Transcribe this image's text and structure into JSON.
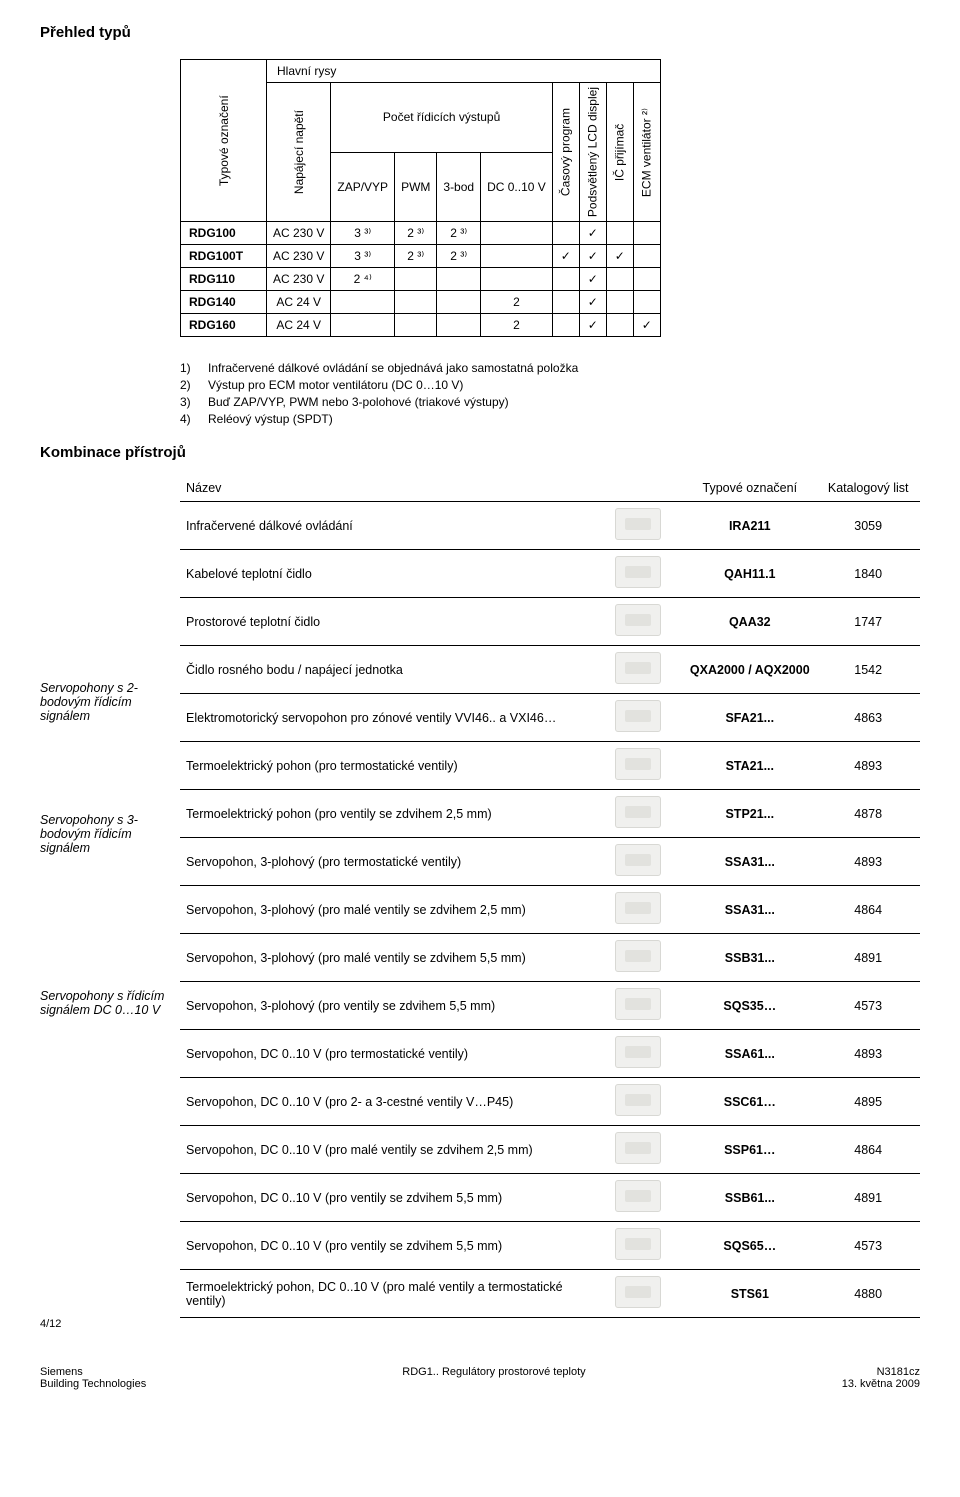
{
  "section_titles": {
    "overview": "Přehled typů",
    "combination": "Kombinace přístrojů"
  },
  "typetable": {
    "headers": {
      "type_col": "Typové označení",
      "main_features": "Hlavní rysy",
      "supply": "Napájecí napětí",
      "outputs_group": "Počet řídicích výstupů",
      "zapvyp": "ZAP/VYP",
      "pwm": "PWM",
      "tribod": "3-bod",
      "dc": "DC 0..10 V",
      "time_prog": "Časový program",
      "lcd": "Podsvětlený LCD displej",
      "ir": "IČ přijímač",
      "ecm": "ECM ventilátor ²⁾"
    },
    "rows": [
      {
        "name": "RDG100",
        "supply": "AC 230 V",
        "zapvyp": "3 ³⁾",
        "pwm": "2 ³⁾",
        "tribod": "2 ³⁾",
        "dc": "",
        "time": "",
        "lcd": "✓",
        "ir": "",
        "ecm": ""
      },
      {
        "name": "RDG100T",
        "supply": "AC 230 V",
        "zapvyp": "3 ³⁾",
        "pwm": "2 ³⁾",
        "tribod": "2 ³⁾",
        "dc": "",
        "time": "✓",
        "lcd": "✓",
        "ir": "✓",
        "ecm": ""
      },
      {
        "name": "RDG110",
        "supply": "AC 230 V",
        "zapvyp": "2 ⁴⁾",
        "pwm": "",
        "tribod": "",
        "dc": "",
        "time": "",
        "lcd": "✓",
        "ir": "",
        "ecm": ""
      },
      {
        "name": "RDG140",
        "supply": "AC 24 V",
        "zapvyp": "",
        "pwm": "",
        "tribod": "",
        "dc": "2",
        "time": "",
        "lcd": "✓",
        "ir": "",
        "ecm": ""
      },
      {
        "name": "RDG160",
        "supply": "AC 24 V",
        "zapvyp": "",
        "pwm": "",
        "tribod": "",
        "dc": "2",
        "time": "",
        "lcd": "✓",
        "ir": "",
        "ecm": "✓"
      }
    ],
    "notes": [
      {
        "n": "1)",
        "t": "Infračervené dálkové ovládání se objednává jako samostatná položka"
      },
      {
        "n": "2)",
        "t": "Výstup pro ECM motor ventilátoru (DC 0…10 V)"
      },
      {
        "n": "3)",
        "t": "Buď ZAP/VYP, PWM nebo 3-polohové (triakové výstupy)"
      },
      {
        "n": "4)",
        "t": "Reléový výstup (SPDT)"
      }
    ]
  },
  "combi": {
    "headers": {
      "name": "Název",
      "type": "Typové označení",
      "list": "Katalogový list"
    },
    "sidebars": {
      "s2": "Servopohony s 2-bodovým řídicím signálem",
      "s3": "Servopohony s 3-bodovým řídicím signálem",
      "sdc": "Servopohony s řídicím signálem DC 0…10 V"
    },
    "rows": [
      {
        "name": "Infračervené dálkové ovládání",
        "type": "IRA211",
        "list": "3059",
        "side": ""
      },
      {
        "name": "Kabelové teplotní čidlo",
        "type": "QAH11.1",
        "list": "1840",
        "side": ""
      },
      {
        "name": "Prostorové teplotní čidlo",
        "type": "QAA32",
        "list": "1747",
        "side": ""
      },
      {
        "name": "Čidlo rosného bodu / napájecí jednotka",
        "type": "QXA2000 / AQX2000",
        "list": "1542",
        "side": ""
      },
      {
        "name": "Elektromotorický servopohon pro zónové ventily VVI46.. a VXI46…",
        "type": "SFA21...",
        "list": "4863",
        "side": "s2"
      },
      {
        "name": "Termoelektrický pohon (pro termostatické ventily)",
        "type": "STA21...",
        "list": "4893",
        "side": ""
      },
      {
        "name": "Termoelektrický pohon (pro ventily se zdvihem 2,5 mm)",
        "type": "STP21...",
        "list": "4878",
        "side": ""
      },
      {
        "name": "Servopohon, 3-plohový (pro termostatické ventily)",
        "type": "SSA31...",
        "list": "4893",
        "side": "s3"
      },
      {
        "name": "Servopohon, 3-plohový (pro malé ventily se zdvihem 2,5 mm)",
        "type": "SSA31...",
        "list": "4864",
        "side": ""
      },
      {
        "name": "Servopohon, 3-plohový (pro malé ventily se zdvihem 5,5 mm)",
        "type": "SSB31...",
        "list": "4891",
        "side": ""
      },
      {
        "name": "Servopohon, 3-plohový (pro ventily se zdvihem 5,5 mm)",
        "type": "SQS35…",
        "list": "4573",
        "side": ""
      },
      {
        "name": "Servopohon, DC 0..10 V (pro termostatické ventily)",
        "type": "SSA61...",
        "list": "4893",
        "side": "sdc"
      },
      {
        "name": "Servopohon, DC 0..10 V (pro 2- a 3-cestné ventily V…P45)",
        "type": "SSC61…",
        "list": "4895",
        "side": ""
      },
      {
        "name": "Servopohon, DC 0..10 V (pro malé ventily se zdvihem 2,5 mm)",
        "type": "SSP61…",
        "list": "4864",
        "side": ""
      },
      {
        "name": "Servopohon, DC 0..10 V (pro ventily se zdvihem 5,5 mm)",
        "type": "SSB61...",
        "list": "4891",
        "side": ""
      },
      {
        "name": "Servopohon, DC 0..10 V (pro ventily se zdvihem 5,5 mm)",
        "type": "SQS65…",
        "list": "4573",
        "side": ""
      },
      {
        "name": "Termoelektrický pohon, DC 0..10 V (pro malé ventily a termostatické ventily)",
        "type": "STS61",
        "list": "4880",
        "side": ""
      }
    ]
  },
  "footer": {
    "pgnum": "4/12",
    "left1": "Siemens",
    "left2": "Building Technologies",
    "mid": "RDG1.. Regulátory prostorové teploty",
    "right1": "N3181cz",
    "right2": "13. května 2009"
  }
}
